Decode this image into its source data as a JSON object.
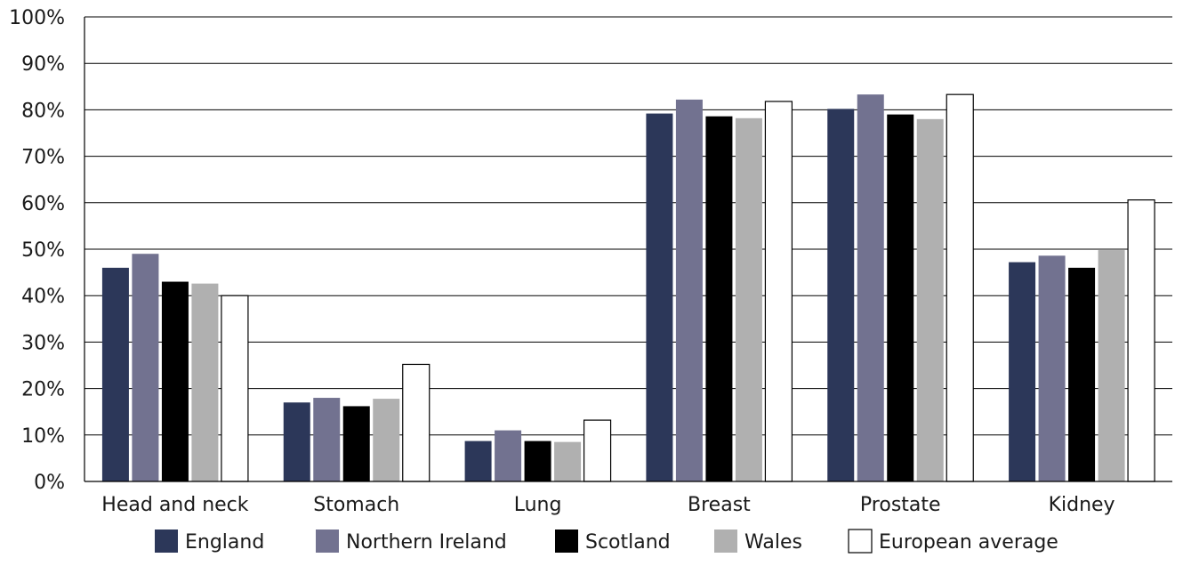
{
  "chart_data": {
    "type": "bar",
    "title": "",
    "xlabel": "",
    "ylabel": "",
    "ylim": [
      0,
      100
    ],
    "y_ticks": [
      0,
      10,
      20,
      30,
      40,
      50,
      60,
      70,
      80,
      90,
      100
    ],
    "y_tick_format": "{v}%",
    "grid": true,
    "legend_position": "bottom",
    "categories": [
      "Head and neck",
      "Stomach",
      "Lung",
      "Breast",
      "Prostate",
      "Kidney"
    ],
    "series": [
      {
        "name": "England",
        "color": "#2c3759",
        "values": [
          46,
          17,
          8.7,
          79.2,
          80.2,
          47.2
        ]
      },
      {
        "name": "Northern Ireland",
        "color": "#727290",
        "values": [
          49,
          18,
          11,
          82.2,
          83.3,
          48.6
        ]
      },
      {
        "name": "Scotland",
        "color": "#000000",
        "values": [
          43,
          16.2,
          8.7,
          78.6,
          79.0,
          46.0
        ]
      },
      {
        "name": "Wales",
        "color": "#b0b0b0",
        "values": [
          42.6,
          17.8,
          8.5,
          78.2,
          78.0,
          49.8
        ]
      },
      {
        "name": "European average",
        "color": "#ffffff",
        "values": [
          40,
          25.2,
          13.2,
          81.8,
          83.3,
          60.6
        ]
      }
    ]
  }
}
